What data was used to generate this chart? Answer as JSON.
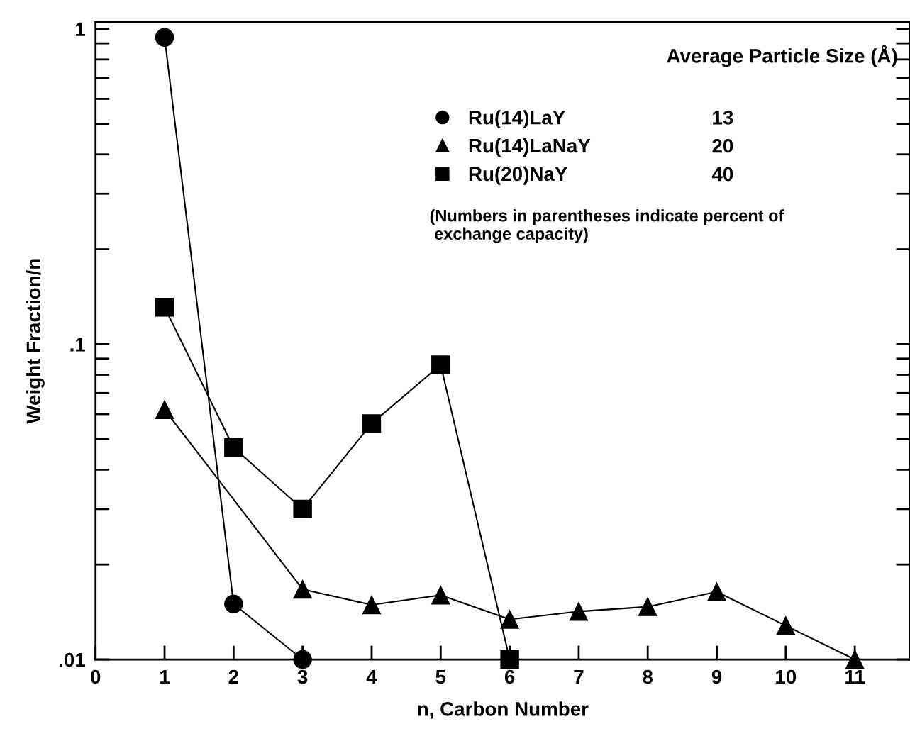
{
  "chart_data": {
    "type": "line",
    "xlabel": "n, Carbon Number",
    "ylabel": "Weight Fraction/n",
    "legend_title": "Average Particle Size (Å)",
    "series": [
      {
        "name": "Ru(14)LaY",
        "color": "#000000",
        "marker": "circle",
        "x": [
          1,
          2,
          3
        ],
        "values": [
          0.94,
          0.015,
          0.01
        ]
      },
      {
        "name": "Ru(14)LaNaY",
        "color": "#000000",
        "marker": "triangle",
        "x": [
          1,
          3,
          4,
          5,
          6,
          7,
          8,
          9,
          10,
          11
        ],
        "values": [
          0.062,
          0.0167,
          0.0149,
          0.016,
          0.0134,
          0.0142,
          0.0147,
          0.0164,
          0.0128,
          0.01
        ]
      },
      {
        "name": "Ru(20)NaY",
        "color": "#000000",
        "marker": "square",
        "x": [
          1,
          2,
          3,
          4,
          5,
          6
        ],
        "values": [
          0.131,
          0.047,
          0.03,
          0.056,
          0.086,
          0.01
        ]
      }
    ],
    "annotations": [
      "13",
      "20",
      "40",
      "(Numbers in parentheses indicate percent of\n exchange capacity)"
    ],
    "log": "y",
    "xlim": [
      0,
      11.8
    ],
    "xticks": [
      0,
      1,
      2,
      3,
      4,
      5,
      6,
      7,
      8,
      9,
      10,
      11
    ],
    "ylim": [
      0.01,
      1.05
    ],
    "yticks": [
      {
        "value": 0.01,
        "label": ".01"
      },
      {
        "value": 0.1,
        "label": ".1"
      },
      {
        "value": 1,
        "label": "1"
      }
    ],
    "grid": false,
    "legend": "top right",
    "line_style": "solid"
  }
}
